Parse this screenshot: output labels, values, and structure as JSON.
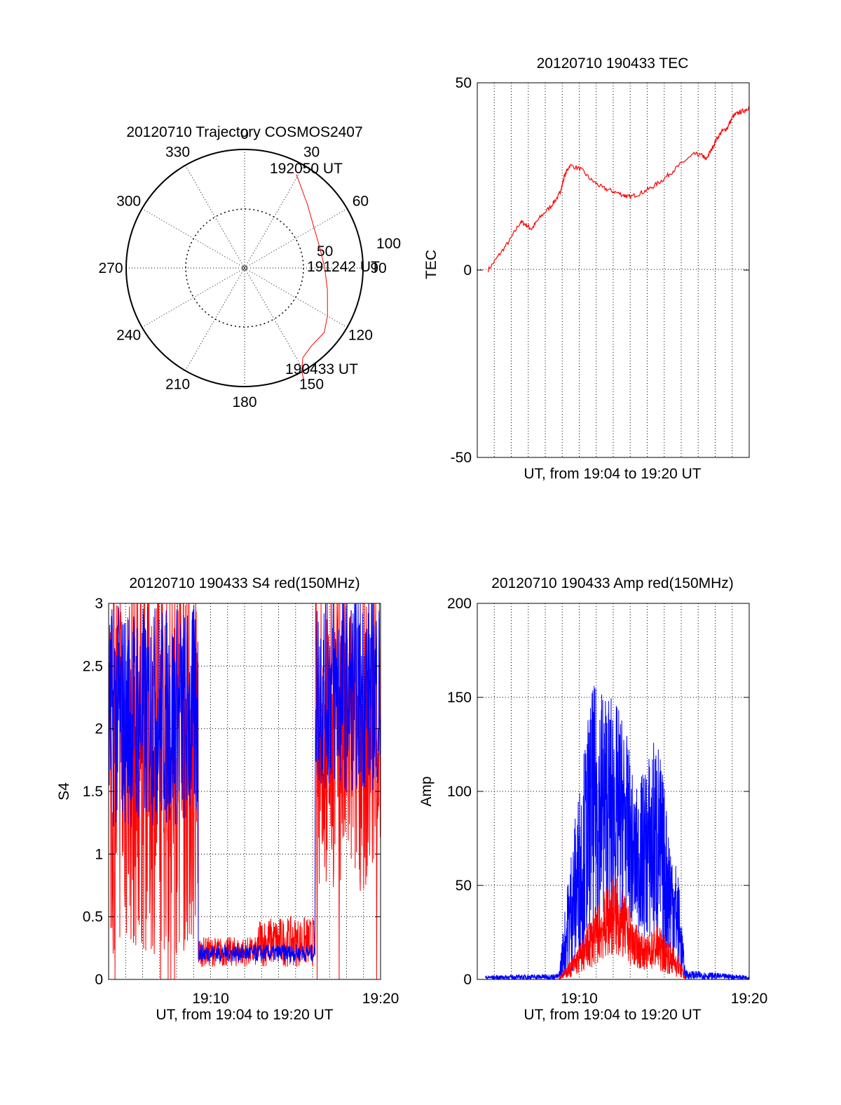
{
  "chart_data": [
    {
      "id": "polar",
      "type": "polar",
      "title": "20120710 Trajectory COSMOS2407",
      "azimuth_labels": [
        "0",
        "30",
        "60",
        "90",
        "120",
        "150",
        "180",
        "210",
        "240",
        "270",
        "300",
        "330"
      ],
      "elevation_ring_labels": [
        "50",
        "100"
      ],
      "series": [
        {
          "color": "#ff0000",
          "points": [
            {
              "azimuth": 29,
              "zenith_angle": 96
            },
            {
              "azimuth": 45,
              "zenith_angle": 80
            },
            {
              "azimuth": 60,
              "zenith_angle": 72
            },
            {
              "azimuth": 75,
              "zenith_angle": 70
            },
            {
              "azimuth": 90,
              "zenith_angle": 72
            },
            {
              "azimuth": 105,
              "zenith_angle": 77
            },
            {
              "azimuth": 120,
              "zenith_angle": 86
            },
            {
              "azimuth": 129,
              "zenith_angle": 92
            },
            {
              "azimuth": 139,
              "zenith_angle": 92
            },
            {
              "azimuth": 147,
              "zenith_angle": 96
            },
            {
              "azimuth": 151,
              "zenith_angle": 106
            },
            {
              "azimuth": 152,
              "zenith_angle": 113
            }
          ]
        }
      ],
      "annotations": [
        "192050 UT",
        "191242 UT",
        "190433 UT"
      ]
    },
    {
      "id": "tec",
      "type": "line",
      "title": "20120710 190433 TEC",
      "xlabel": "UT, from 19:04 to 19:20 UT",
      "ylabel": "TEC",
      "ylim": [
        -50,
        50
      ],
      "yticks": [
        "-50",
        "0",
        "50"
      ],
      "grid": "x-dotted",
      "series": [
        {
          "color": "#ff0000",
          "x": [
            0.04,
            0.08,
            0.12,
            0.16,
            0.18,
            0.2,
            0.23,
            0.27,
            0.3,
            0.31,
            0.32,
            0.34,
            0.38,
            0.42,
            0.46,
            0.5,
            0.54,
            0.56,
            0.6,
            0.64,
            0.68,
            0.72,
            0.76,
            0.8,
            0.83,
            0.84,
            0.86,
            0.88,
            0.9,
            0.92,
            0.94,
            0.96,
            0.98,
            1.0
          ],
          "y": [
            0,
            4,
            8,
            13,
            12,
            11,
            14,
            17,
            20,
            22,
            25,
            28,
            27,
            24,
            22,
            21,
            20,
            19.5,
            20.5,
            22,
            24,
            26.5,
            29,
            31,
            30.5,
            29.5,
            32,
            35,
            37,
            38,
            41,
            42,
            42.5,
            43.5
          ]
        }
      ]
    },
    {
      "id": "s4",
      "type": "line",
      "title": "20120710 190433 S4 red(150MHz)",
      "xlabel": "UT, from 19:04 to 19:20 UT",
      "ylabel": "S4",
      "ylim": [
        0,
        3
      ],
      "yticks": [
        "0",
        "0.5",
        "1",
        "1.5",
        "2",
        "2.5",
        "3"
      ],
      "xticks": [
        "19:10",
        "19:20"
      ],
      "grid": "dotted",
      "series": [
        {
          "color": "#ff0000",
          "segments": [
            {
              "x0": 0.0,
              "x1": 0.33,
              "mean": 1.8,
              "spread": 1.6
            },
            {
              "x0": 0.33,
              "x1": 0.55,
              "mean": 0.22,
              "spread": 0.12
            },
            {
              "x0": 0.55,
              "x1": 0.76,
              "mean": 0.3,
              "spread": 0.2
            },
            {
              "x0": 0.76,
              "x1": 1.0,
              "mean": 1.9,
              "spread": 1.2
            }
          ]
        },
        {
          "color": "#0000ff",
          "segments": [
            {
              "x0": 0.0,
              "x1": 0.33,
              "mean": 2.1,
              "spread": 0.9
            },
            {
              "x0": 0.33,
              "x1": 0.76,
              "mean": 0.21,
              "spread": 0.07
            },
            {
              "x0": 0.76,
              "x1": 1.0,
              "mean": 2.3,
              "spread": 0.8
            }
          ]
        }
      ]
    },
    {
      "id": "amp",
      "type": "line",
      "title": "20120710 190433 Amp red(150MHz)",
      "xlabel": "UT, from 19:04 to 19:20 UT",
      "ylabel": "Amp",
      "ylim": [
        0,
        200
      ],
      "yticks": [
        "0",
        "50",
        "100",
        "150",
        "200"
      ],
      "xticks": [
        "19:10",
        "19:20"
      ],
      "grid": "dotted",
      "series": [
        {
          "color": "#0000ff",
          "envelope": [
            {
              "x": 0.0,
              "lo": 0,
              "hi": 2
            },
            {
              "x": 0.3,
              "lo": 0,
              "hi": 3
            },
            {
              "x": 0.34,
              "lo": 2,
              "hi": 65
            },
            {
              "x": 0.38,
              "lo": 10,
              "hi": 110
            },
            {
              "x": 0.42,
              "lo": 20,
              "hi": 155
            },
            {
              "x": 0.46,
              "lo": 25,
              "hi": 160
            },
            {
              "x": 0.5,
              "lo": 30,
              "hi": 150
            },
            {
              "x": 0.54,
              "lo": 30,
              "hi": 140
            },
            {
              "x": 0.58,
              "lo": 25,
              "hi": 100
            },
            {
              "x": 0.62,
              "lo": 20,
              "hi": 115
            },
            {
              "x": 0.66,
              "lo": 15,
              "hi": 135
            },
            {
              "x": 0.7,
              "lo": 10,
              "hi": 90
            },
            {
              "x": 0.74,
              "lo": 5,
              "hi": 55
            },
            {
              "x": 0.765,
              "lo": 0,
              "hi": 5
            },
            {
              "x": 1.0,
              "lo": 0,
              "hi": 2
            }
          ]
        },
        {
          "color": "#ff0000",
          "envelope": [
            {
              "x": 0.3,
              "lo": 0,
              "hi": 1
            },
            {
              "x": 0.34,
              "lo": 1,
              "hi": 10
            },
            {
              "x": 0.38,
              "lo": 3,
              "hi": 20
            },
            {
              "x": 0.42,
              "lo": 6,
              "hi": 35
            },
            {
              "x": 0.46,
              "lo": 10,
              "hi": 45
            },
            {
              "x": 0.5,
              "lo": 12,
              "hi": 58
            },
            {
              "x": 0.54,
              "lo": 10,
              "hi": 45
            },
            {
              "x": 0.58,
              "lo": 6,
              "hi": 30
            },
            {
              "x": 0.62,
              "lo": 5,
              "hi": 22
            },
            {
              "x": 0.66,
              "lo": 5,
              "hi": 30
            },
            {
              "x": 0.7,
              "lo": 3,
              "hi": 22
            },
            {
              "x": 0.74,
              "lo": 1,
              "hi": 14
            },
            {
              "x": 0.765,
              "lo": 0,
              "hi": 1
            }
          ]
        }
      ]
    }
  ]
}
